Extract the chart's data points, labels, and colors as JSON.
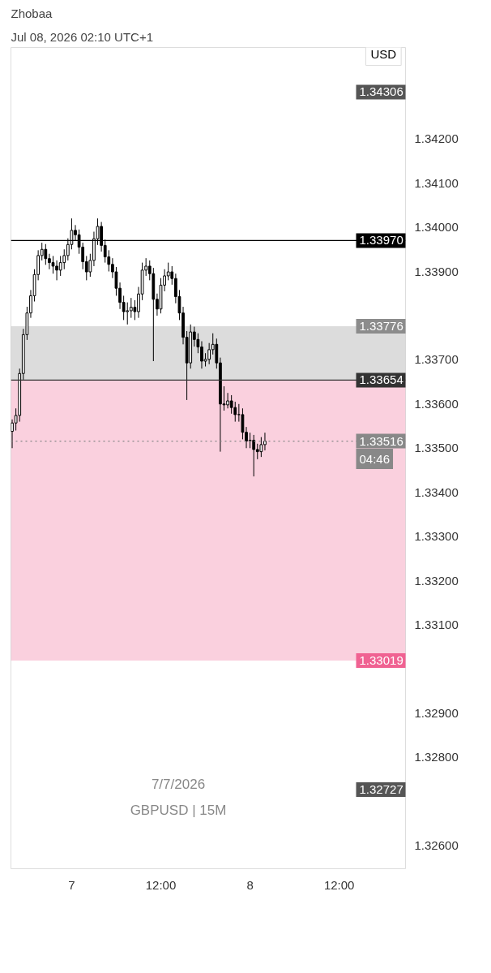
{
  "chart_data": {
    "type": "candlestick",
    "title": "Zhobaa",
    "subtitle": "Jul 08, 2026 02:10 UTC+1",
    "ylabel": "USD",
    "x": [
      "2026-07-06T16:00",
      "2026-07-06T16:30",
      "2026-07-06T17:00",
      "2026-07-06T17:30",
      "2026-07-06T18:00",
      "2026-07-06T18:30",
      "2026-07-06T19:00",
      "2026-07-06T19:30",
      "2026-07-06T20:00",
      "2026-07-06T20:30",
      "2026-07-06T21:00",
      "2026-07-06T21:30",
      "2026-07-06T22:00",
      "2026-07-06T22:30",
      "2026-07-06T23:00",
      "2026-07-06T23:30",
      "2026-07-07T00:00",
      "2026-07-07T00:30",
      "2026-07-07T01:00",
      "2026-07-07T01:30",
      "2026-07-07T02:00",
      "2026-07-07T02:30",
      "2026-07-07T03:00",
      "2026-07-07T03:30",
      "2026-07-07T04:00",
      "2026-07-07T04:30",
      "2026-07-07T05:00",
      "2026-07-07T05:30",
      "2026-07-07T06:00",
      "2026-07-07T06:30",
      "2026-07-07T07:00",
      "2026-07-07T07:30",
      "2026-07-07T08:00",
      "2026-07-07T08:30",
      "2026-07-07T09:00",
      "2026-07-07T09:30",
      "2026-07-07T10:00",
      "2026-07-07T10:30",
      "2026-07-07T11:00",
      "2026-07-07T11:30",
      "2026-07-07T12:00",
      "2026-07-07T12:30",
      "2026-07-07T13:00",
      "2026-07-07T13:30",
      "2026-07-07T14:00",
      "2026-07-07T14:30",
      "2026-07-07T15:00",
      "2026-07-07T15:30",
      "2026-07-07T16:00",
      "2026-07-07T16:30",
      "2026-07-07T17:00",
      "2026-07-07T17:30",
      "2026-07-07T18:00",
      "2026-07-07T18:30",
      "2026-07-07T19:00",
      "2026-07-07T19:30",
      "2026-07-07T20:00",
      "2026-07-07T20:30",
      "2026-07-07T21:00",
      "2026-07-07T21:30",
      "2026-07-07T22:00",
      "2026-07-07T22:30",
      "2026-07-07T23:00",
      "2026-07-07T23:30",
      "2026-07-08T00:00",
      "2026-07-08T00:30",
      "2026-07-08T01:00",
      "2026-07-08T01:30",
      "2026-07-08T02:00"
    ],
    "series": [
      {
        "color": "#000000",
        "ohlc": [
          [
            1.33538,
            1.33565,
            1.335,
            1.33557
          ],
          [
            1.33557,
            1.3359,
            1.3354,
            1.33574
          ],
          [
            1.33574,
            1.3368,
            1.3356,
            1.33669
          ],
          [
            1.33669,
            1.3377,
            1.33655,
            1.33757
          ],
          [
            1.33757,
            1.3382,
            1.33745,
            1.33806
          ],
          [
            1.33806,
            1.33858,
            1.33795,
            1.33845
          ],
          [
            1.33845,
            1.33905,
            1.33832,
            1.33893
          ],
          [
            1.33893,
            1.33948,
            1.3388,
            1.33936
          ],
          [
            1.33936,
            1.33965,
            1.33925,
            1.3395
          ],
          [
            1.3395,
            1.33962,
            1.33915,
            1.33929
          ],
          [
            1.33929,
            1.3394,
            1.33905,
            1.3392
          ],
          [
            1.3392,
            1.33935,
            1.33895,
            1.33912
          ],
          [
            1.33912,
            1.33925,
            1.3388,
            1.33903
          ],
          [
            1.33903,
            1.33935,
            1.3389,
            1.3392
          ],
          [
            1.3392,
            1.3395,
            1.33905,
            1.33936
          ],
          [
            1.33936,
            1.33975,
            1.33925,
            1.33961
          ],
          [
            1.33961,
            1.3402,
            1.3395,
            1.33993
          ],
          [
            1.33993,
            1.34005,
            1.3397,
            1.33983
          ],
          [
            1.33983,
            1.33995,
            1.3394,
            1.33955
          ],
          [
            1.33955,
            1.33965,
            1.33905,
            1.33922
          ],
          [
            1.33922,
            1.33935,
            1.3388,
            1.33899
          ],
          [
            1.33899,
            1.3394,
            1.33888,
            1.33925
          ],
          [
            1.33925,
            1.3399,
            1.33912,
            1.33974
          ],
          [
            1.33974,
            1.3402,
            1.3396,
            1.34002
          ],
          [
            1.34002,
            1.34012,
            1.33945,
            1.33959
          ],
          [
            1.33959,
            1.33972,
            1.3392,
            1.33933
          ],
          [
            1.33933,
            1.33948,
            1.339,
            1.33916
          ],
          [
            1.33916,
            1.3393,
            1.33885,
            1.33899
          ],
          [
            1.33899,
            1.3391,
            1.33845,
            1.33862
          ],
          [
            1.33862,
            1.33875,
            1.33815,
            1.3383
          ],
          [
            1.3383,
            1.33845,
            1.3379,
            1.33809
          ],
          [
            1.33809,
            1.3383,
            1.3378,
            1.33811
          ],
          [
            1.33811,
            1.3384,
            1.33795,
            1.33819
          ],
          [
            1.33819,
            1.33835,
            1.3379,
            1.33809
          ],
          [
            1.33809,
            1.33865,
            1.33795,
            1.33849
          ],
          [
            1.33849,
            1.3392,
            1.33835,
            1.33903
          ],
          [
            1.33903,
            1.3393,
            1.3389,
            1.33912
          ],
          [
            1.33912,
            1.33925,
            1.3388,
            1.33895
          ],
          [
            1.33895,
            1.33908,
            1.33697,
            1.33837
          ],
          [
            1.33837,
            1.3385,
            1.338,
            1.33815
          ],
          [
            1.33815,
            1.33885,
            1.33805,
            1.33869
          ],
          [
            1.33869,
            1.33905,
            1.33855,
            1.3389
          ],
          [
            1.3389,
            1.3392,
            1.3388,
            1.33899
          ],
          [
            1.33899,
            1.33912,
            1.3387,
            1.33884
          ],
          [
            1.33884,
            1.33895,
            1.33828,
            1.33843
          ],
          [
            1.33843,
            1.33858,
            1.3379,
            1.33806
          ],
          [
            1.33806,
            1.3382,
            1.33735,
            1.33751
          ],
          [
            1.33751,
            1.33765,
            1.33609,
            1.33693
          ],
          [
            1.33693,
            1.3378,
            1.3368,
            1.33763
          ],
          [
            1.33763,
            1.33775,
            1.3373,
            1.33746
          ],
          [
            1.33746,
            1.3376,
            1.33715,
            1.33729
          ],
          [
            1.33729,
            1.33742,
            1.3368,
            1.33697
          ],
          [
            1.33697,
            1.33715,
            1.33685,
            1.33701
          ],
          [
            1.33701,
            1.33738,
            1.3369,
            1.33723
          ],
          [
            1.33723,
            1.3376,
            1.33712,
            1.33735
          ],
          [
            1.33735,
            1.33748,
            1.3368,
            1.33693
          ],
          [
            1.33693,
            1.33705,
            1.33492,
            1.336
          ],
          [
            1.336,
            1.3364,
            1.33585,
            1.33598
          ],
          [
            1.33598,
            1.33625,
            1.3359,
            1.33607
          ],
          [
            1.33607,
            1.3362,
            1.33578,
            1.33592
          ],
          [
            1.33592,
            1.33605,
            1.3356,
            1.33576
          ],
          [
            1.33576,
            1.336,
            1.3356,
            1.33576
          ],
          [
            1.33576,
            1.3359,
            1.3352,
            1.33536
          ],
          [
            1.33536,
            1.33548,
            1.335,
            1.33516
          ],
          [
            1.33516,
            1.33535,
            1.335,
            1.33518
          ],
          [
            1.33518,
            1.3353,
            1.33436,
            1.33497
          ],
          [
            1.33497,
            1.3351,
            1.33475,
            1.33492
          ],
          [
            1.33492,
            1.33525,
            1.3348,
            1.33508
          ],
          [
            1.33508,
            1.33535,
            1.33495,
            1.33516
          ]
        ]
      }
    ],
    "xlim": [
      "2026-07-06T15:50",
      "2026-07-08T20:55"
    ],
    "xticks": [
      {
        "value": "2026-07-07T00:00",
        "label": "7"
      },
      {
        "value": "2026-07-07T12:00",
        "label": "12:00"
      },
      {
        "value": "2026-07-08T00:00",
        "label": "8"
      },
      {
        "value": "2026-07-08T12:00",
        "label": "12:00"
      }
    ],
    "ylim": [
      1.32548,
      1.34407
    ],
    "yticks": [
      {
        "value": 1.326,
        "label": "1.32600"
      },
      {
        "value": 1.328,
        "label": "1.32800"
      },
      {
        "value": 1.329,
        "label": "1.32900"
      },
      {
        "value": 1.331,
        "label": "1.33100"
      },
      {
        "value": 1.332,
        "label": "1.33200"
      },
      {
        "value": 1.333,
        "label": "1.33300"
      },
      {
        "value": 1.334,
        "label": "1.33400"
      },
      {
        "value": 1.335,
        "label": "1.33500"
      },
      {
        "value": 1.336,
        "label": "1.33600"
      },
      {
        "value": 1.337,
        "label": "1.33700"
      },
      {
        "value": 1.339,
        "label": "1.33900"
      },
      {
        "value": 1.34,
        "label": "1.34000"
      },
      {
        "value": 1.341,
        "label": "1.34100"
      },
      {
        "value": 1.342,
        "label": "1.34200"
      }
    ],
    "ref_lines": [
      {
        "axis": "y",
        "value": 1.3397,
        "label": "1.33970",
        "color": "#000000",
        "line_style": "solid"
      },
      {
        "axis": "y",
        "value": 1.33516,
        "label": "1.33516",
        "color": "#888888",
        "line_style": "dotted"
      },
      {
        "axis": "y",
        "value": 1.33654,
        "label": "1.33654",
        "color": "#333333",
        "line_style": "solid"
      }
    ],
    "bands": [
      {
        "axis": "y",
        "from": 1.33654,
        "to": 1.33776,
        "label": "1.33776",
        "color": "#8c8c8c"
      },
      {
        "axis": "y",
        "from": 1.33654,
        "to": 1.33019,
        "label": "1.33019",
        "color": "#f06292"
      }
    ],
    "annotations": [
      "1.34306",
      "1.32727",
      "04:46",
      "7/7/2026",
      "GBPUSD | 15M"
    ],
    "grid": false
  }
}
